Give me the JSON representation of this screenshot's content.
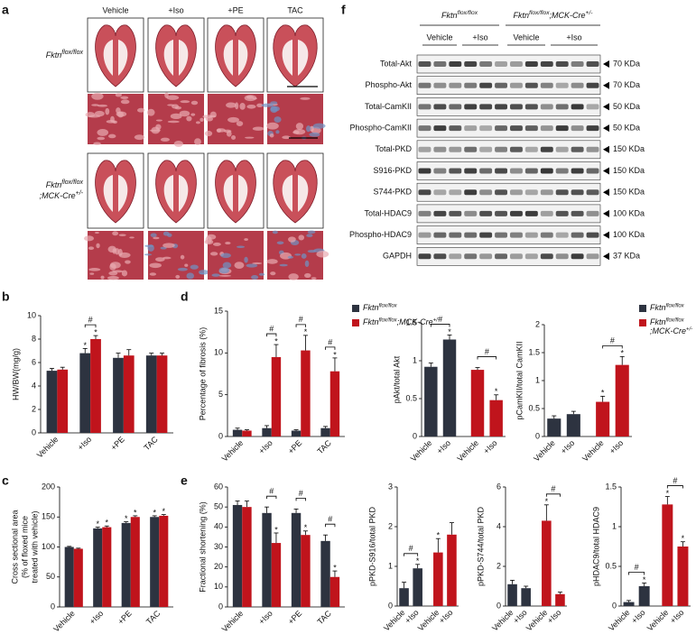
{
  "figure": {
    "panel_labels": [
      "a",
      "b",
      "c",
      "d",
      "e",
      "f"
    ],
    "histology": {
      "columns": [
        "Vehicle",
        "+Iso",
        "+PE",
        "TAC"
      ],
      "rows": [
        [
          [
            {
              "text": "Fktn"
            },
            {
              "text": "flox/flox",
              "sup": true
            }
          ]
        ],
        [
          [
            {
              "text": "Fktn"
            },
            {
              "text": "flox/flox",
              "sup": true
            }
          ],
          [
            {
              "text": ";MCK-Cre"
            },
            {
              "text": "+/-",
              "sup": true
            }
          ]
        ]
      ]
    },
    "blot": {
      "groups": [
        [
          [
            {
              "text": "Fktn"
            },
            {
              "text": "flox/flox",
              "sup": true
            }
          ]
        ],
        [
          [
            {
              "text": "Fktn"
            },
            {
              "text": "flox/flox",
              "sup": true
            },
            {
              "text": ";MCK-Cre"
            },
            {
              "text": "+/-",
              "sup": true
            }
          ]
        ]
      ],
      "lanes": [
        "Vehicle",
        "+Iso",
        "Vehicle",
        "+Iso"
      ],
      "rows": [
        {
          "label": "Total-Akt",
          "size": "70 KDa"
        },
        {
          "label": "Phospho-Akt",
          "size": "70 KDa"
        },
        {
          "label": "Total-CamKII",
          "size": "50 KDa"
        },
        {
          "label": "Phospho-CamKII",
          "size": "50 KDa"
        },
        {
          "label": "Total-PKD",
          "size": "150 KDa"
        },
        {
          "label": "S916-PKD",
          "size": "150 KDa"
        },
        {
          "label": "S744-PKD",
          "size": "150 KDa"
        },
        {
          "label": "Total-HDAC9",
          "size": "100 KDa"
        },
        {
          "label": "Phospho-HDAC9",
          "size": "100 KDa"
        },
        {
          "label": "GAPDH",
          "size": "37 KDa"
        }
      ]
    }
  },
  "chart_data": [
    {
      "type": "bar",
      "ylabel": "HW/BW(mg/g)",
      "categories": [
        "Vehicle",
        "+Iso",
        "+PE",
        "TAC"
      ],
      "series": [
        {
          "color": "#2d3340",
          "values": [
            5.3,
            6.8,
            6.4,
            6.6
          ],
          "errors": [
            0.2,
            0.4,
            0.4,
            0.2
          ]
        },
        {
          "color": "#c0141c",
          "values": [
            5.4,
            8.0,
            6.6,
            6.6
          ],
          "errors": [
            0.2,
            0.3,
            0.5,
            0.2
          ]
        }
      ],
      "ylim": [
        0,
        10
      ],
      "yticks": [
        0,
        2,
        4,
        6,
        8,
        10
      ],
      "annotations": [
        {
          "text": "#",
          "category": 1
        },
        {
          "text": "*",
          "category": 1,
          "series": 0
        },
        {
          "text": "*",
          "category": 1,
          "series": 1
        }
      ]
    },
    {
      "type": "bar",
      "ylabel": [
        "Cross sectional area",
        "(% of floxed mice",
        "treated with vehicle)"
      ],
      "categories": [
        "Vehicle",
        "+Iso",
        "+PE",
        "TAC"
      ],
      "series": [
        {
          "color": "#2d3340",
          "values": [
            100,
            131,
            140,
            150
          ],
          "errors": [
            1,
            2,
            2,
            2
          ]
        },
        {
          "color": "#c0141c",
          "values": [
            97,
            133,
            150,
            152
          ],
          "errors": [
            1,
            2,
            2,
            2
          ]
        }
      ],
      "ylim": [
        0,
        200
      ],
      "yticks": [
        0,
        50,
        100,
        150,
        200
      ],
      "annotations": [
        {
          "text": "*",
          "category": 1,
          "series": 0
        },
        {
          "text": "*",
          "category": 1,
          "series": 1
        },
        {
          "text": "*",
          "category": 2,
          "series": 0
        },
        {
          "text": "*",
          "category": 2,
          "series": 1
        },
        {
          "text": "*",
          "category": 3,
          "series": 0
        },
        {
          "text": "*",
          "category": 3,
          "series": 1
        }
      ]
    },
    {
      "type": "bar",
      "ylabel": "Percentage of fibrosis (%)",
      "categories": [
        "Vehicle",
        "+Iso",
        "+PE",
        "TAC"
      ],
      "series": [
        {
          "color": "#2d3340",
          "values": [
            0.8,
            1.0,
            0.7,
            1.0
          ],
          "errors": [
            0.2,
            0.3,
            0.1,
            0.2
          ]
        },
        {
          "color": "#c0141c",
          "values": [
            0.7,
            9.5,
            10.3,
            7.8
          ],
          "errors": [
            0.1,
            1.5,
            1.8,
            1.6
          ]
        }
      ],
      "legend": [
        {
          "color": "#2d3340",
          "label": [
            [
              {
                "text": "Fktn"
              },
              {
                "text": "flox/flox",
                "sup": true
              }
            ]
          ]
        },
        {
          "color": "#c0141c",
          "label": [
            [
              {
                "text": "Fktn"
              },
              {
                "text": "flox/flox",
                "sup": true
              },
              {
                "text": ";MCK-Cre"
              },
              {
                "text": "+/-",
                "sup": true
              }
            ]
          ]
        }
      ],
      "ylim": [
        0,
        15
      ],
      "yticks": [
        0,
        5,
        10,
        15
      ],
      "annotations": [
        {
          "text": "#",
          "category": 1
        },
        {
          "text": "#",
          "category": 2
        },
        {
          "text": "#",
          "category": 3
        },
        {
          "text": "*",
          "category": 1,
          "series": 1
        },
        {
          "text": "*",
          "category": 2,
          "series": 1
        },
        {
          "text": "*",
          "category": 3,
          "series": 1
        }
      ]
    },
    {
      "type": "bar",
      "ylabel": "Fractional shortening (%)",
      "categories": [
        "Vehicle",
        "+Iso",
        "+PE",
        "TAC"
      ],
      "series": [
        {
          "color": "#2d3340",
          "values": [
            51,
            47,
            47,
            33
          ],
          "errors": [
            2,
            3,
            2,
            3
          ]
        },
        {
          "color": "#c0141c",
          "values": [
            50,
            32,
            36,
            15
          ],
          "errors": [
            3,
            5,
            2,
            3
          ]
        }
      ],
      "ylim": [
        0,
        60
      ],
      "yticks": [
        0,
        10,
        20,
        30,
        40,
        50,
        60
      ],
      "annotations": [
        {
          "text": "#",
          "category": 1
        },
        {
          "text": "#",
          "category": 2
        },
        {
          "text": "#",
          "category": 3
        },
        {
          "text": "*",
          "category": 1,
          "series": 1
        },
        {
          "text": "*",
          "category": 2,
          "series": 1
        },
        {
          "text": "*",
          "category": 3,
          "series": 1
        }
      ]
    },
    {
      "type": "bar",
      "ylabel": "pAkt/total Akt",
      "categories": [
        "Vehicle",
        "+Iso",
        "Vehicle",
        "+Iso"
      ],
      "values": [
        0.92,
        1.28,
        0.88,
        0.48
      ],
      "errors": [
        0.05,
        0.06,
        0.03,
        0.07
      ],
      "colors": [
        "#2d3340",
        "#2d3340",
        "#c0141c",
        "#c0141c"
      ],
      "ylim": [
        0,
        1.5
      ],
      "yticks": [
        0,
        0.5,
        1,
        1.5
      ],
      "annotations": [
        {
          "text": "#",
          "bars": [
            0,
            1
          ]
        },
        {
          "text": "#",
          "bars": [
            2,
            3
          ]
        },
        {
          "text": "*",
          "bar": 1
        },
        {
          "text": "*",
          "bar": 3
        }
      ]
    },
    {
      "type": "bar",
      "ylabel": "pCamKII/total CamKII",
      "categories": [
        "Vehicle",
        "+Iso",
        "Vehicle",
        "+Iso"
      ],
      "values": [
        0.32,
        0.4,
        0.62,
        1.28
      ],
      "errors": [
        0.05,
        0.05,
        0.1,
        0.15
      ],
      "colors": [
        "#2d3340",
        "#2d3340",
        "#c0141c",
        "#c0141c"
      ],
      "legend": [
        {
          "color": "#2d3340",
          "label": [
            [
              {
                "text": "Fktn"
              },
              {
                "text": "flox/flox",
                "sup": true
              }
            ]
          ]
        },
        {
          "color": "#c0141c",
          "label": [
            [
              {
                "text": "Fktn"
              },
              {
                "text": "flox/flox",
                "sup": true
              }
            ],
            [
              {
                "text": ";MCK-Cre"
              },
              {
                "text": "+/-",
                "sup": true
              }
            ]
          ]
        }
      ],
      "ylim": [
        0,
        2
      ],
      "yticks": [
        0,
        0.5,
        1,
        1.5,
        2
      ],
      "annotations": [
        {
          "text": "#",
          "bars": [
            2,
            3
          ]
        },
        {
          "text": "*",
          "bar": 2
        },
        {
          "text": "*",
          "bar": 3
        }
      ]
    },
    {
      "type": "bar",
      "ylabel": "pPKD-S916/total PKD",
      "categories": [
        "Vehicle",
        "+Iso",
        "Vehicle",
        "+Iso"
      ],
      "values": [
        0.45,
        0.95,
        1.35,
        1.8
      ],
      "errors": [
        0.15,
        0.1,
        0.35,
        0.3
      ],
      "colors": [
        "#2d3340",
        "#2d3340",
        "#c0141c",
        "#c0141c"
      ],
      "ylim": [
        0,
        3
      ],
      "yticks": [
        0,
        1,
        2,
        3
      ],
      "annotations": [
        {
          "text": "#",
          "bars": [
            0,
            1
          ]
        },
        {
          "text": "*",
          "bar": 1
        },
        {
          "text": "*",
          "bar": 2
        }
      ]
    },
    {
      "type": "bar",
      "ylabel": "pPKD-S744/total PKD",
      "categories": [
        "Vehicle",
        "+Iso",
        "Vehicle",
        "+Iso"
      ],
      "values": [
        1.1,
        0.9,
        4.3,
        0.6
      ],
      "errors": [
        0.2,
        0.1,
        0.8,
        0.1
      ],
      "colors": [
        "#2d3340",
        "#2d3340",
        "#c0141c",
        "#c0141c"
      ],
      "ylim": [
        0,
        6
      ],
      "yticks": [
        0,
        2,
        4,
        6
      ],
      "annotations": [
        {
          "text": "#",
          "bars": [
            2,
            3
          ]
        },
        {
          "text": "*",
          "bar": 2
        }
      ]
    },
    {
      "type": "bar",
      "ylabel": "pHDAC9/total HDAC9",
      "categories": [
        "Vehicle",
        "+Iso",
        "Vehicle",
        "+Iso"
      ],
      "values": [
        0.05,
        0.25,
        1.28,
        0.75
      ],
      "errors": [
        0.02,
        0.04,
        0.1,
        0.06
      ],
      "colors": [
        "#2d3340",
        "#2d3340",
        "#c0141c",
        "#c0141c"
      ],
      "ylim": [
        0,
        1.5
      ],
      "yticks": [
        0,
        0.5,
        1,
        1.5
      ],
      "annotations": [
        {
          "text": "#",
          "bars": [
            0,
            1
          ]
        },
        {
          "text": "#",
          "bars": [
            2,
            3
          ]
        },
        {
          "text": "*",
          "bar": 1
        },
        {
          "text": "*",
          "bar": 2
        },
        {
          "text": "*",
          "bar": 3
        }
      ]
    }
  ]
}
